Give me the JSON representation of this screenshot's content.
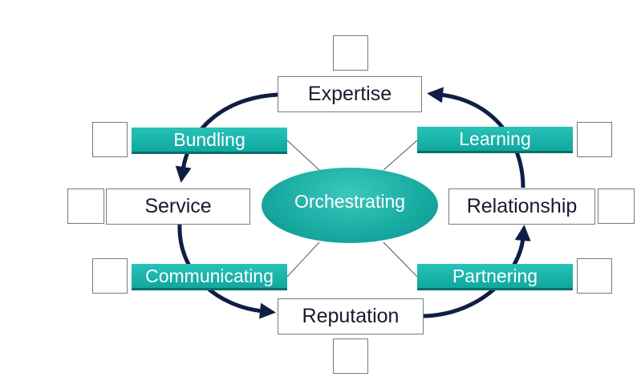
{
  "center": {
    "label": "Orchestrating"
  },
  "nodes": {
    "expertise": "Expertise",
    "service": "Service",
    "relationship": "Relationship",
    "reputation": "Reputation"
  },
  "activities": {
    "bundling": "Bundling",
    "learning": "Learning",
    "communicating": "Communicating",
    "partnering": "Partnering"
  },
  "colors": {
    "teal": "#17aaa1",
    "arrow": "#0f1e45",
    "connector": "#555555"
  }
}
